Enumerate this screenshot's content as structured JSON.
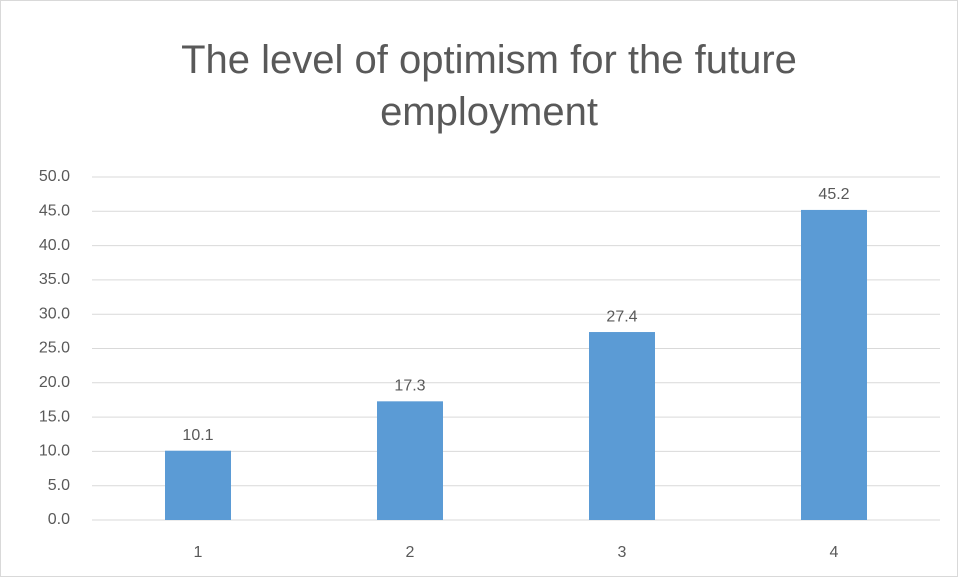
{
  "chart_data": {
    "type": "bar",
    "title": "The level of optimism for the future employment",
    "categories": [
      "1",
      "2",
      "3",
      "4"
    ],
    "values": [
      10.1,
      17.3,
      27.4,
      45.2
    ],
    "color": "#5b9bd5",
    "ylim": [
      0,
      50
    ],
    "yticks": [
      {
        "value": 0,
        "label": "0.0"
      },
      {
        "value": 5,
        "label": "5.0"
      },
      {
        "value": 10,
        "label": "10.0"
      },
      {
        "value": 15,
        "label": "15.0"
      },
      {
        "value": 20,
        "label": "20.0"
      },
      {
        "value": 25,
        "label": "25.0"
      },
      {
        "value": 30,
        "label": "30.0"
      },
      {
        "value": 35,
        "label": "35.0"
      },
      {
        "value": 40,
        "label": "40.0"
      },
      {
        "value": 45,
        "label": "45.0"
      },
      {
        "value": 50,
        "label": "50.0"
      }
    ],
    "grid": true
  }
}
